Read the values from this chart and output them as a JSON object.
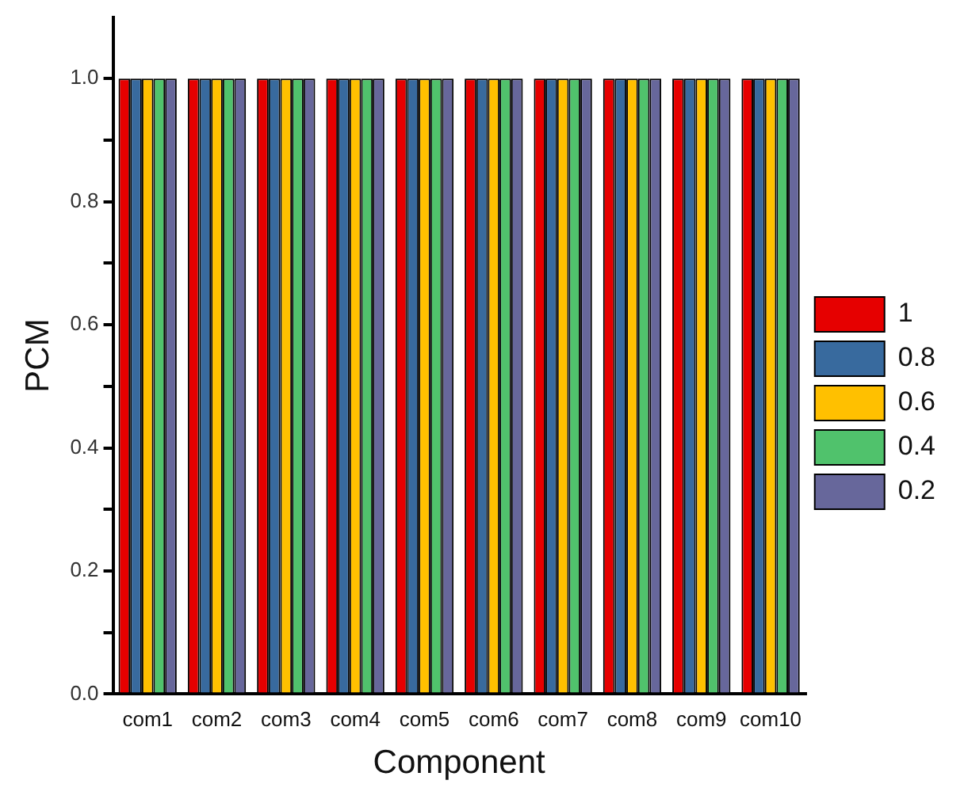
{
  "chart_data": {
    "type": "bar",
    "xlabel": "Component",
    "ylabel": "PCM",
    "categories": [
      "com1",
      "com2",
      "com3",
      "com4",
      "com5",
      "com6",
      "com7",
      "com8",
      "com9",
      "com10"
    ],
    "series": [
      {
        "name": "1",
        "color": "#e60000",
        "values": [
          1,
          1,
          1,
          1,
          1,
          1,
          1,
          1,
          1,
          1
        ]
      },
      {
        "name": "0.8",
        "color": "#386a9e",
        "values": [
          1,
          1,
          1,
          1,
          1,
          1,
          1,
          1,
          1,
          1
        ]
      },
      {
        "name": "0.6",
        "color": "#ffc000",
        "values": [
          1,
          1,
          1,
          1,
          1,
          1,
          1,
          1,
          1,
          1
        ]
      },
      {
        "name": "0.4",
        "color": "#50c26c",
        "values": [
          1,
          1,
          1,
          1,
          1,
          1,
          1,
          1,
          1,
          1
        ]
      },
      {
        "name": "0.2",
        "color": "#67679b",
        "values": [
          1,
          1,
          1,
          1,
          1,
          1,
          1,
          1,
          1,
          1
        ]
      }
    ],
    "ylim": [
      0,
      1.1
    ],
    "yticks": [
      {
        "value": 0,
        "label": "0.0"
      },
      {
        "value": 0.1,
        "label": null
      },
      {
        "value": 0.2,
        "label": "0.2"
      },
      {
        "value": 0.3,
        "label": null
      },
      {
        "value": 0.4,
        "label": "0.4"
      },
      {
        "value": 0.5,
        "label": null
      },
      {
        "value": 0.6,
        "label": "0.6"
      },
      {
        "value": 0.7,
        "label": null
      },
      {
        "value": 0.8,
        "label": "0.8"
      },
      {
        "value": 0.9,
        "label": null
      },
      {
        "value": 1,
        "label": "1.0"
      }
    ],
    "grid": false,
    "legend": "right"
  }
}
